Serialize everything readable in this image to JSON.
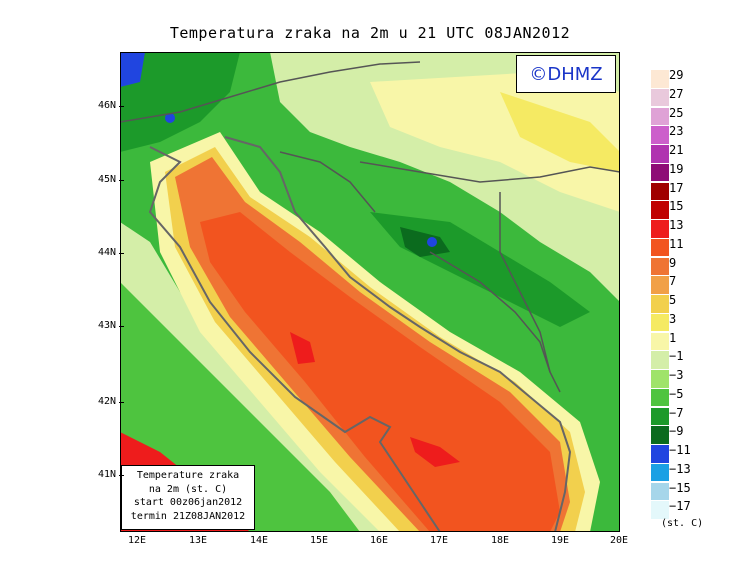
{
  "title": "Temperatura zraka na 2m u 21 UTC 08JAN2012",
  "copyright": "©DHMZ",
  "info_box": {
    "line1": "Temperature zraka",
    "line2": "na 2m (st. C)",
    "line3": "start 00z06jan2012",
    "line4": "termin 21Z08JAN2012"
  },
  "lat_ticks": [
    "46N",
    "45N",
    "44N",
    "43N",
    "42N",
    "41N"
  ],
  "lon_ticks": [
    "12E",
    "13E",
    "14E",
    "15E",
    "16E",
    "17E",
    "18E",
    "19E",
    "20E"
  ],
  "legend": {
    "unit": "(st. C)",
    "labels": [
      "29",
      "27",
      "25",
      "23",
      "21",
      "19",
      "17",
      "15",
      "13",
      "11",
      "9",
      "7",
      "5",
      "3",
      "1",
      "−1",
      "−3",
      "−5",
      "−7",
      "−9",
      "−11",
      "−13",
      "−15",
      "−17"
    ],
    "colors": [
      "#fde8d4",
      "#e9c9dc",
      "#dfa2d6",
      "#cc5fcb",
      "#b033b0",
      "#8e0c76",
      "#a00000",
      "#c00000",
      "#ee1c1c",
      "#f2541f",
      "#ef7434",
      "#f1a047",
      "#f2d04d",
      "#f5ea63",
      "#f8f6a8",
      "#d4eea8",
      "#9fe36a",
      "#4ec43f",
      "#1c9a2a",
      "#0b6b1e",
      "#2045e0",
      "#1ba0e4",
      "#a6d6ea",
      "#e4f8fb"
    ]
  }
}
